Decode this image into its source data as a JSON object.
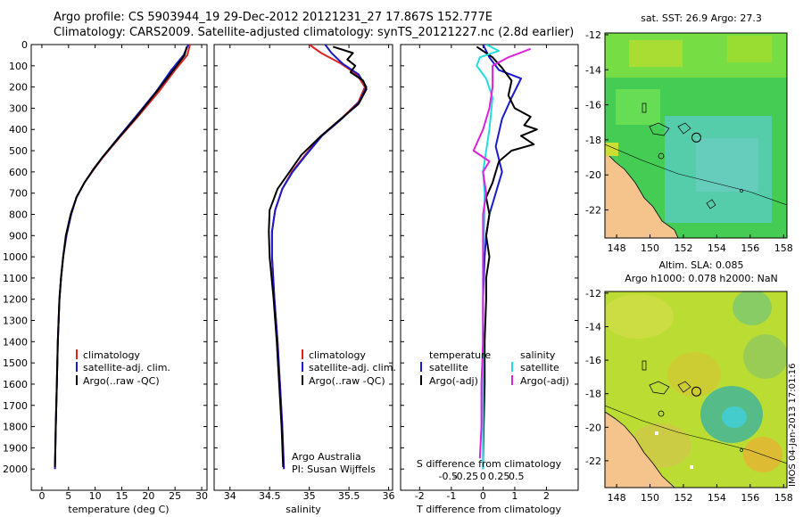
{
  "header": {
    "line1": "Argo profile: CS 5903944_19 29-Dec-2012 20121231_27 17.867S 152.777E",
    "line2": "Climatology: CARS2009. Satellite-adjusted climatology: synTS_20121227.nc (2.8d earlier)"
  },
  "colors": {
    "clim": "#dd2222",
    "sat": "#1a1acc",
    "argo": "#000000",
    "cyan": "#22dddd",
    "magenta": "#dd22dd"
  },
  "credits": {
    "line1": "Argo Australia",
    "line2": "PI: Susan Wijffels"
  },
  "stamp": "IMOS 04-Jan-2013 17:01:16",
  "chart_data": [
    {
      "type": "line",
      "id": "temperature",
      "title": "",
      "xlabel": "temperature (deg C)",
      "ylabel": "",
      "xlim": [
        -2,
        31
      ],
      "ylim": [
        2100,
        0
      ],
      "xticks": [
        0,
        5,
        10,
        15,
        20,
        25,
        30
      ],
      "yticks": [
        0,
        100,
        200,
        300,
        400,
        500,
        600,
        700,
        800,
        900,
        1000,
        1100,
        1200,
        1300,
        1400,
        1500,
        1600,
        1700,
        1800,
        1900,
        2000
      ],
      "legend": {
        "position": "lower-center",
        "entries": [
          "climatology",
          "satellite-adj. clim.",
          "Argo(..raw -QC)"
        ]
      },
      "series": [
        {
          "name": "climatology",
          "color": "#dd2222",
          "points": [
            [
              27.8,
              0
            ],
            [
              27.3,
              50
            ],
            [
              25,
              120
            ],
            [
              22,
              220
            ],
            [
              18,
              340
            ],
            [
              14.5,
              440
            ],
            [
              11.5,
              530
            ],
            [
              10,
              580
            ],
            [
              8,
              650
            ],
            [
              6.5,
              720
            ],
            [
              5.5,
              800
            ],
            [
              4.6,
              900
            ],
            [
              4,
              1000
            ],
            [
              3.6,
              1100
            ],
            [
              3.3,
              1200
            ],
            [
              3,
              1400
            ],
            [
              2.8,
              1600
            ],
            [
              2.6,
              1800
            ],
            [
              2.45,
              2000
            ]
          ]
        },
        {
          "name": "satellite-adj. clim.",
          "color": "#1a1acc",
          "points": [
            [
              27.5,
              0
            ],
            [
              26.6,
              50
            ],
            [
              24.3,
              120
            ],
            [
              21.5,
              220
            ],
            [
              17.6,
              340
            ],
            [
              14.3,
              440
            ],
            [
              11.4,
              530
            ],
            [
              9.9,
              580
            ],
            [
              8,
              650
            ],
            [
              6.5,
              720
            ],
            [
              5.5,
              800
            ],
            [
              4.6,
              900
            ],
            [
              4,
              1000
            ],
            [
              3.6,
              1100
            ],
            [
              3.3,
              1200
            ],
            [
              3,
              1400
            ],
            [
              2.8,
              1600
            ],
            [
              2.6,
              1800
            ],
            [
              2.45,
              2000
            ]
          ]
        },
        {
          "name": "Argo(..raw -QC)",
          "color": "#000000",
          "points": [
            [
              27.2,
              10
            ],
            [
              26.8,
              50
            ],
            [
              24.7,
              120
            ],
            [
              21.6,
              220
            ],
            [
              17.8,
              340
            ],
            [
              14.4,
              440
            ],
            [
              11.4,
              530
            ],
            [
              9.9,
              580
            ],
            [
              8,
              650
            ],
            [
              6.5,
              720
            ],
            [
              5.4,
              800
            ],
            [
              4.5,
              900
            ],
            [
              4,
              1000
            ],
            [
              3.6,
              1100
            ],
            [
              3.3,
              1200
            ],
            [
              3,
              1400
            ],
            [
              2.8,
              1600
            ],
            [
              2.6,
              1800
            ],
            [
              2.45,
              1990
            ]
          ]
        }
      ]
    },
    {
      "type": "line",
      "id": "salinity",
      "title": "",
      "xlabel": "salinity",
      "ylabel": "",
      "xlim": [
        33.8,
        36.05
      ],
      "ylim": [
        2100,
        0
      ],
      "xticks": [
        34,
        34.5,
        35,
        35.5,
        36
      ],
      "yticks": [
        0,
        100,
        200,
        300,
        400,
        500,
        600,
        700,
        800,
        900,
        1000,
        1100,
        1200,
        1300,
        1400,
        1500,
        1600,
        1700,
        1800,
        1900,
        2000
      ],
      "legend": {
        "position": "lower-center",
        "entries": [
          "climatology",
          "satellite-adj. clim.",
          "Argo(..raw -QC)"
        ]
      },
      "series": [
        {
          "name": "climatology",
          "color": "#dd2222",
          "points": [
            [
              35,
              0
            ],
            [
              35.15,
              40
            ],
            [
              35.4,
              90
            ],
            [
              35.6,
              140
            ],
            [
              35.7,
              200
            ],
            [
              35.62,
              270
            ],
            [
              35.4,
              350
            ],
            [
              35.15,
              430
            ],
            [
              34.95,
              520
            ],
            [
              34.78,
              600
            ],
            [
              34.66,
              680
            ],
            [
              34.57,
              780
            ],
            [
              34.53,
              880
            ],
            [
              34.53,
              1000
            ],
            [
              34.56,
              1200
            ],
            [
              34.6,
              1400
            ],
            [
              34.63,
              1600
            ],
            [
              34.66,
              1800
            ],
            [
              34.68,
              2000
            ]
          ]
        },
        {
          "name": "satellite-adj. clim.",
          "color": "#1a1acc",
          "points": [
            [
              35.2,
              0
            ],
            [
              35.28,
              40
            ],
            [
              35.42,
              90
            ],
            [
              35.62,
              140
            ],
            [
              35.72,
              200
            ],
            [
              35.63,
              270
            ],
            [
              35.41,
              350
            ],
            [
              35.16,
              430
            ],
            [
              34.96,
              520
            ],
            [
              34.79,
              600
            ],
            [
              34.66,
              680
            ],
            [
              34.57,
              780
            ],
            [
              34.53,
              880
            ],
            [
              34.53,
              1000
            ],
            [
              34.56,
              1200
            ],
            [
              34.6,
              1400
            ],
            [
              34.63,
              1600
            ],
            [
              34.66,
              1800
            ],
            [
              34.68,
              2000
            ]
          ]
        },
        {
          "name": "Argo(..raw -QC)",
          "color": "#000000",
          "points": [
            [
              35.3,
              10
            ],
            [
              35.55,
              40
            ],
            [
              35.48,
              70
            ],
            [
              35.58,
              100
            ],
            [
              35.52,
              130
            ],
            [
              35.68,
              170
            ],
            [
              35.72,
              210
            ],
            [
              35.62,
              280
            ],
            [
              35.4,
              350
            ],
            [
              35.15,
              430
            ],
            [
              34.9,
              520
            ],
            [
              34.75,
              600
            ],
            [
              34.6,
              680
            ],
            [
              34.5,
              780
            ],
            [
              34.49,
              880
            ],
            [
              34.5,
              1000
            ],
            [
              34.55,
              1200
            ],
            [
              34.59,
              1400
            ],
            [
              34.62,
              1600
            ],
            [
              34.65,
              1800
            ],
            [
              34.67,
              1990
            ]
          ]
        }
      ]
    },
    {
      "type": "line",
      "id": "difference",
      "title": "",
      "xlabel": "T difference from climatology",
      "xlabel_top": "S difference from climatology",
      "ylabel": "",
      "xlim": [
        -2.6,
        3.0
      ],
      "ylim": [
        2100,
        0
      ],
      "xticks_bottom": [
        -2,
        -1,
        0,
        1,
        2
      ],
      "xticks_top": [
        {
          "pos": -1.1,
          "label": "-0.5"
        },
        {
          "pos": -0.55,
          "label": "-0.25"
        },
        {
          "pos": 0,
          "label": "0"
        },
        {
          "pos": 0.5,
          "label": "0.25"
        },
        {
          "pos": 1.05,
          "label": "0.5"
        }
      ],
      "yticks": [
        0,
        100,
        200,
        300,
        400,
        500,
        600,
        700,
        800,
        900,
        1000,
        1100,
        1200,
        1300,
        1400,
        1500,
        1600,
        1700,
        1800,
        1900,
        2000
      ],
      "legend": {
        "position": "lower-center",
        "title_t": "temperature",
        "title_s": "salinity",
        "entries_t": [
          "satellite",
          "Argo(-adj)"
        ],
        "entries_s": [
          "satellite",
          "Argo(-adj)"
        ]
      },
      "series": [
        {
          "name": "temperature satellite",
          "color": "#1a1acc",
          "points": [
            [
              0,
              0
            ],
            [
              0.2,
              60
            ],
            [
              0.5,
              120
            ],
            [
              1.2,
              160
            ],
            [
              0.9,
              250
            ],
            [
              0.6,
              350
            ],
            [
              0.4,
              480
            ],
            [
              0.6,
              600
            ],
            [
              0.4,
              700
            ],
            [
              0.2,
              800
            ],
            [
              0.1,
              900
            ],
            [
              0.05,
              1000
            ],
            [
              0,
              1200
            ],
            [
              0,
              1500
            ],
            [
              0,
              2000
            ]
          ]
        },
        {
          "name": "temperature Argo(-adj)",
          "color": "#000000",
          "points": [
            [
              -0.2,
              10
            ],
            [
              0.3,
              60
            ],
            [
              0.6,
              110
            ],
            [
              0.9,
              170
            ],
            [
              0.8,
              240
            ],
            [
              1.0,
              300
            ],
            [
              1.5,
              340
            ],
            [
              1.3,
              380
            ],
            [
              1.7,
              400
            ],
            [
              1.2,
              430
            ],
            [
              1.6,
              470
            ],
            [
              0.9,
              500
            ],
            [
              0.5,
              550
            ],
            [
              0.4,
              600
            ],
            [
              0.3,
              650
            ],
            [
              0.1,
              720
            ],
            [
              0.2,
              800
            ],
            [
              0.1,
              900
            ],
            [
              0.2,
              1000
            ],
            [
              0.1,
              1100
            ],
            [
              0.1,
              1200
            ],
            [
              0.05,
              1400
            ],
            [
              0.05,
              1600
            ],
            [
              0.02,
              1800
            ],
            [
              0,
              1990
            ]
          ]
        },
        {
          "name": "salinity satellite",
          "color": "#22dddd",
          "points": [
            [
              0.1,
              0
            ],
            [
              0.5,
              30
            ],
            [
              -0.1,
              60
            ],
            [
              -0.2,
              100
            ],
            [
              0.1,
              160
            ],
            [
              0.3,
              250
            ],
            [
              0.2,
              400
            ],
            [
              0.1,
              500
            ],
            [
              0.0,
              600
            ],
            [
              0.05,
              700
            ],
            [
              0.05,
              800
            ],
            [
              0.0,
              1000
            ],
            [
              0,
              1500
            ],
            [
              0,
              2000
            ]
          ]
        },
        {
          "name": "salinity Argo(-adj)",
          "color": "#dd22dd",
          "points": [
            [
              1.5,
              20
            ],
            [
              0.8,
              60
            ],
            [
              0.3,
              100
            ],
            [
              0.3,
              200
            ],
            [
              0.2,
              300
            ],
            [
              0.0,
              400
            ],
            [
              -0.3,
              500
            ],
            [
              0.2,
              550
            ],
            [
              0.0,
              600
            ],
            [
              0.1,
              700
            ],
            [
              0.0,
              800
            ],
            [
              0.0,
              1000
            ],
            [
              0.0,
              1400
            ],
            [
              -0.05,
              1600
            ],
            [
              -0.05,
              1800
            ],
            [
              -0.1,
              1950
            ]
          ]
        }
      ]
    },
    {
      "type": "heatmap",
      "id": "sst-map",
      "title": "sat. SST: 26.9 Argo: 27.3",
      "xlabel": "",
      "ylabel": "",
      "xlim": [
        147.3,
        158.2
      ],
      "ylim": [
        -23.6,
        -11.9
      ],
      "xticks": [
        148,
        150,
        152,
        154,
        156,
        158
      ],
      "yticks": [
        -12,
        -14,
        -16,
        -18,
        -20,
        -22
      ],
      "float_position": {
        "lon": 152.777,
        "lat": -17.867
      }
    },
    {
      "type": "heatmap",
      "id": "sla-map",
      "title": "Altim. SLA: 0.085",
      "subtitle": "Argo h1000: 0.078 h2000: NaN",
      "xlabel": "",
      "ylabel": "",
      "xlim": [
        147.3,
        158.2
      ],
      "ylim": [
        -23.6,
        -11.9
      ],
      "xticks": [
        148,
        150,
        152,
        154,
        156,
        158
      ],
      "yticks": [
        -12,
        -14,
        -16,
        -18,
        -20,
        -22
      ],
      "float_position": {
        "lon": 152.777,
        "lat": -17.867
      }
    }
  ]
}
